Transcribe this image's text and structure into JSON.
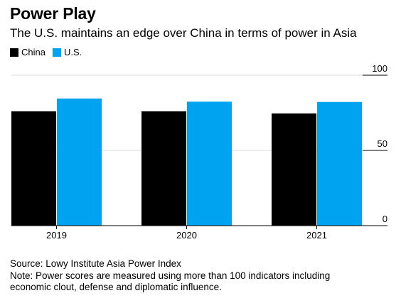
{
  "header": {
    "title": "Power Play",
    "subtitle": "The U.S. maintains an edge over China in terms of power in Asia"
  },
  "footer": {
    "source": "Source: Lowy Institute Asia Power Index",
    "note_line1": "Note: Power scores are measured using more than 100 indicators including",
    "note_line2": "economic clout, defense and diplomatic influence."
  },
  "chart_data": {
    "type": "bar",
    "title": "Power Play",
    "subtitle": "The U.S. maintains an edge over China in terms of power in Asia",
    "categories": [
      "2019",
      "2020",
      "2021"
    ],
    "series": [
      {
        "name": "China",
        "color": "#000000",
        "values": [
          76,
          76,
          74.6
        ]
      },
      {
        "name": "U.S.",
        "color": "#00a3f0",
        "values": [
          84.5,
          82.4,
          82.2
        ]
      }
    ],
    "yticks": [
      0,
      50,
      100
    ],
    "ylim": [
      0,
      100
    ],
    "y_axis_position": "right",
    "legend_position": "top-left",
    "grid": true
  }
}
